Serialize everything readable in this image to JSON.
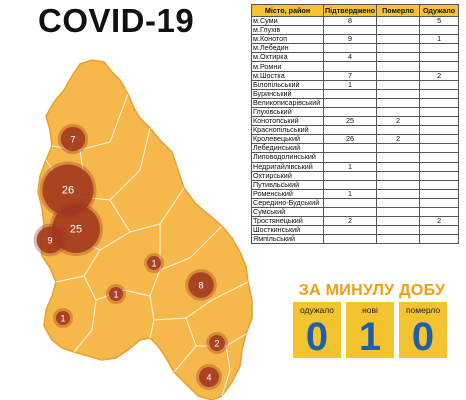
{
  "title": "COVID-19",
  "table": {
    "headers": [
      "Місто, район",
      "Підтверджено",
      "Померло",
      "Одужало"
    ],
    "rows": [
      [
        "м.Суми",
        "8",
        "",
        "5"
      ],
      [
        "м.Глухів",
        "",
        "",
        ""
      ],
      [
        "м.Конотоп",
        "9",
        "",
        "1"
      ],
      [
        "м.Лебедин",
        "",
        "",
        ""
      ],
      [
        "м.Охтирка",
        "4",
        "",
        ""
      ],
      [
        "м.Ромни",
        "",
        "",
        ""
      ],
      [
        "м.Шостка",
        "7",
        "",
        "2"
      ],
      [
        "Білопільський",
        "1",
        "",
        ""
      ],
      [
        "Буринський",
        "",
        "",
        ""
      ],
      [
        "Великописарівський",
        "",
        "",
        ""
      ],
      [
        "Глухівський",
        "",
        "",
        ""
      ],
      [
        "Конотопський",
        "25",
        "2",
        ""
      ],
      [
        "Краснопільський",
        "",
        "",
        ""
      ],
      [
        "Кролевецький",
        "26",
        "2",
        ""
      ],
      [
        "Лебединський",
        "",
        "",
        ""
      ],
      [
        "Липоводолинський",
        "",
        "",
        ""
      ],
      [
        "Недригайлівський",
        "1",
        "",
        ""
      ],
      [
        "Охтирський",
        "",
        "",
        ""
      ],
      [
        "Путивльський",
        "",
        "",
        ""
      ],
      [
        "Роменський",
        "1",
        "",
        ""
      ],
      [
        "Середино-Будський",
        "",
        "",
        ""
      ],
      [
        "Сумський",
        "",
        "",
        ""
      ],
      [
        "Тростянецький",
        "2",
        "",
        "2"
      ],
      [
        "Шосткинський",
        "",
        "",
        ""
      ],
      [
        "Ямпільський",
        "",
        "",
        ""
      ]
    ]
  },
  "daily": {
    "title": "ЗА МИНУЛУ ДОБУ",
    "recovered_label": "одужало",
    "recovered_value": "0",
    "new_label": "нові",
    "new_value": "1",
    "died_label": "померло",
    "died_value": "0"
  },
  "map": {
    "fill_color": "#f7b84b",
    "border_color": "#e8a030",
    "bubble_color": "#a0361c",
    "bubbles": [
      {
        "label": "7",
        "value": 7
      },
      {
        "label": "26",
        "value": 26
      },
      {
        "label": "25",
        "value": 25
      },
      {
        "label": "9",
        "value": 9
      },
      {
        "label": "1",
        "value": 1
      },
      {
        "label": "8",
        "value": 8
      },
      {
        "label": "1",
        "value": 1
      },
      {
        "label": "1",
        "value": 1
      },
      {
        "label": "2",
        "value": 2
      },
      {
        "label": "4",
        "value": 4
      }
    ]
  }
}
